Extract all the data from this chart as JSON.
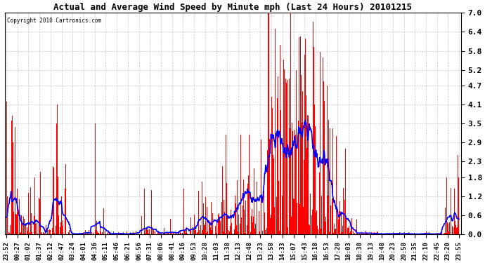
{
  "title": "Actual and Average Wind Speed by Minute mph (Last 24 Hours) 20101215",
  "copyright": "Copyright 2010 Cartronics.com",
  "yticks": [
    0.0,
    0.6,
    1.2,
    1.8,
    2.3,
    2.9,
    3.5,
    4.1,
    4.7,
    5.2,
    5.8,
    6.4,
    7.0
  ],
  "ylim": [
    0.0,
    7.0
  ],
  "bar_color": "#ff0000",
  "line_color": "#0000ff",
  "background_color": "#ffffff",
  "grid_color": "#c8c8c8",
  "xtick_labels": [
    "23:52",
    "00:27",
    "01:02",
    "01:37",
    "02:12",
    "02:47",
    "03:24",
    "04:01",
    "04:36",
    "05:11",
    "05:46",
    "06:21",
    "06:56",
    "07:31",
    "08:06",
    "08:41",
    "09:16",
    "09:53",
    "10:28",
    "11:03",
    "11:38",
    "12:13",
    "12:48",
    "13:23",
    "13:58",
    "14:33",
    "15:07",
    "15:43",
    "16:18",
    "16:53",
    "17:28",
    "18:03",
    "18:38",
    "19:13",
    "19:48",
    "20:23",
    "20:58",
    "21:35",
    "22:10",
    "22:45",
    "23:20",
    "23:55"
  ],
  "n_points": 1440,
  "seed": 42,
  "avg_window": 30,
  "figwidth": 6.9,
  "figheight": 3.75,
  "dpi": 100
}
